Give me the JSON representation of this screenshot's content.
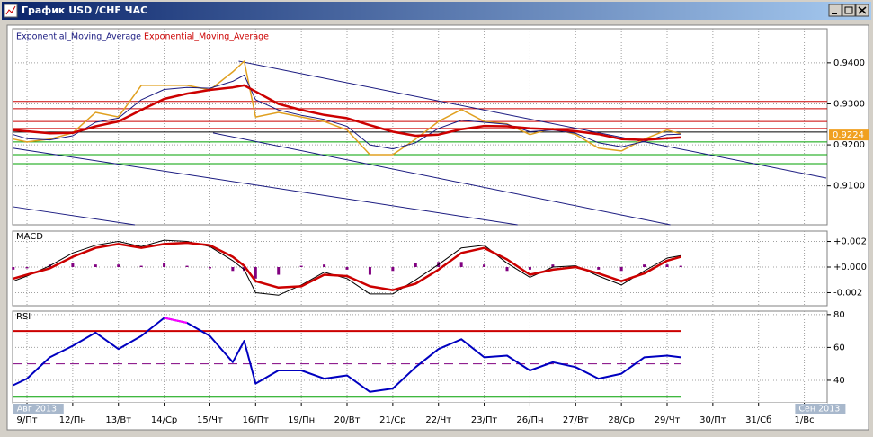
{
  "window": {
    "title": "График USD /CHF ЧАС"
  },
  "chart_data": [
    {
      "type": "line",
      "x": [
        -0.3,
        0,
        0.5,
        1,
        1.5,
        2,
        2.5,
        3,
        3.5,
        4,
        4.5,
        4.75,
        5,
        5.5,
        6,
        6.5,
        7,
        7.5,
        8,
        8.5,
        9,
        9.5,
        10,
        10.5,
        11,
        11.5,
        12,
        12.5,
        13,
        13.5,
        14,
        14.3
      ],
      "price": {
        "color": "#e0a020",
        "values": [
          0.9214,
          0.9207,
          0.9214,
          0.9229,
          0.9279,
          0.9268,
          0.9345,
          0.9345,
          0.9345,
          0.9334,
          0.9378,
          0.9404,
          0.9268,
          0.9279,
          0.9268,
          0.9257,
          0.9236,
          0.9176,
          0.9176,
          0.9214,
          0.9257,
          0.9286,
          0.9257,
          0.9251,
          0.9225,
          0.924,
          0.9225,
          0.9192,
          0.9185,
          0.9214,
          0.9236,
          0.9227
        ]
      },
      "series": [
        {
          "name": "Exponential_Moving_Average",
          "color": "#1a1a80",
          "values": [
            0.9225,
            0.9215,
            0.9212,
            0.9222,
            0.9255,
            0.9265,
            0.931,
            0.9335,
            0.934,
            0.9338,
            0.9355,
            0.937,
            0.931,
            0.9285,
            0.9272,
            0.9262,
            0.9245,
            0.92,
            0.919,
            0.9205,
            0.924,
            0.926,
            0.9255,
            0.925,
            0.9232,
            0.9236,
            0.9228,
            0.9205,
            0.9195,
            0.9208,
            0.9225,
            0.9226
          ]
        },
        {
          "name": "Exponential_Moving_Average",
          "color": "#cc0000",
          "values": [
            0.9236,
            0.9233,
            0.9228,
            0.9229,
            0.9245,
            0.9257,
            0.9285,
            0.9312,
            0.9325,
            0.9334,
            0.934,
            0.9345,
            0.933,
            0.93,
            0.9285,
            0.9273,
            0.9265,
            0.9248,
            0.9232,
            0.9222,
            0.9225,
            0.9238,
            0.9246,
            0.9245,
            0.924,
            0.9238,
            0.9233,
            0.9226,
            0.9214,
            0.9212,
            0.9216,
            0.9218
          ]
        }
      ],
      "ylim": [
        0.9005,
        0.9483
      ],
      "yticks": [
        {
          "value": 0.94,
          "label": "0.9400"
        },
        {
          "value": 0.93,
          "label": "0.9300"
        },
        {
          "value": 0.92,
          "label": "0.9200"
        },
        {
          "value": 0.91,
          "label": "0.9100"
        }
      ],
      "levels": [
        {
          "value": 0.9306,
          "color": "#cc0000"
        },
        {
          "value": 0.9288,
          "color": "#cc0000"
        },
        {
          "value": 0.9257,
          "color": "#cc0000"
        },
        {
          "value": 0.924,
          "color": "#cc0000"
        },
        {
          "value": 0.9231,
          "color": "#000000"
        },
        {
          "value": 0.9207,
          "color": "#00a000"
        },
        {
          "value": 0.9176,
          "color": "#00a000"
        },
        {
          "value": 0.9154,
          "color": "#00a000"
        }
      ],
      "trend_lines": [
        {
          "color": "#1a1a80",
          "x": [
            4.63,
            17.48
          ],
          "values": [
            0.9404,
            0.9119
          ]
        },
        {
          "color": "#1a1a80",
          "x": [
            4.07,
            14.07
          ],
          "values": [
            0.9229,
            0.9005
          ]
        },
        {
          "color": "#1a1a80",
          "x": [
            -0.31,
            10.73
          ],
          "values": [
            0.9192,
            0.9005
          ]
        },
        {
          "color": "#1a1a80",
          "x": [
            -0.31,
            2.36
          ],
          "values": [
            0.9049,
            0.9005
          ]
        }
      ],
      "current_price": {
        "value": 0.9224,
        "color": "#f0a020"
      }
    },
    {
      "type": "line",
      "title": "MACD",
      "x": [
        -0.3,
        0,
        0.5,
        1,
        1.5,
        2,
        2.5,
        3,
        3.5,
        4,
        4.5,
        4.75,
        5,
        5.5,
        6,
        6.5,
        7,
        7.5,
        8,
        8.5,
        9,
        9.5,
        10,
        10.5,
        11,
        11.5,
        12,
        12.5,
        13,
        13.5,
        14,
        14.3
      ],
      "histogram": {
        "color": "#800080",
        "values": [
          -0.0002,
          -0.0001,
          0.0002,
          0.0003,
          0.0002,
          0.0002,
          0.0001,
          0.0003,
          0.0001,
          -0.0001,
          -0.0003,
          -0.0003,
          -0.0009,
          -0.0006,
          0.0001,
          0.0002,
          -0.0002,
          -0.0006,
          -0.0003,
          0.0003,
          0.0004,
          0.0004,
          0.0002,
          -0.0003,
          -0.0002,
          0.0002,
          0.0001,
          -0.0002,
          -0.0003,
          0.0002,
          0.0002,
          0.0001
        ]
      },
      "series": [
        {
          "color": "#000000",
          "values": [
            -0.0011,
            -0.0007,
            0.0001,
            0.0011,
            0.0017,
            0.002,
            0.0016,
            0.0021,
            0.002,
            0.0016,
            0.0005,
            -0.0002,
            -0.002,
            -0.0022,
            -0.0014,
            -0.0004,
            -0.0009,
            -0.0021,
            -0.0021,
            -0.001,
            0.0002,
            0.0015,
            0.0017,
            0.0003,
            -0.0008,
            0.0,
            0.0001,
            -0.0007,
            -0.0014,
            -0.0003,
            0.0007,
            0.0009
          ]
        },
        {
          "color": "#cc0000",
          "values": [
            -0.0009,
            -0.0006,
            -0.0001,
            0.0008,
            0.0015,
            0.0018,
            0.0015,
            0.0018,
            0.0019,
            0.0017,
            0.0008,
            0.0001,
            -0.0011,
            -0.0016,
            -0.0015,
            -0.0006,
            -0.0007,
            -0.0015,
            -0.0018,
            -0.0013,
            -0.0002,
            0.0011,
            0.0015,
            0.0006,
            -0.0006,
            -0.0002,
            0.0,
            -0.0005,
            -0.0011,
            -0.0005,
            0.0005,
            0.0008
          ]
        }
      ],
      "ylim": [
        -0.00302,
        0.00281
      ],
      "yticks": [
        {
          "value": 0.002,
          "label": "+0.002"
        },
        {
          "value": 0,
          "label": "+0.000"
        },
        {
          "value": -0.002,
          "label": "-0.002"
        }
      ]
    },
    {
      "type": "line",
      "title": "RSI",
      "x": [
        -0.3,
        0,
        0.5,
        1,
        1.5,
        2,
        2.5,
        3,
        3.5,
        4,
        4.5,
        4.75,
        5,
        5.5,
        6,
        6.5,
        7,
        7.5,
        8,
        8.5,
        9,
        9.5,
        10,
        10.5,
        11,
        11.5,
        12,
        12.5,
        13,
        13.5,
        14,
        14.3
      ],
      "series": [
        {
          "color": "#0000c0",
          "overbought_color": "#ff00ff",
          "values": [
            37,
            41,
            54,
            61,
            69,
            59,
            67,
            78,
            75,
            67,
            51,
            64,
            38,
            46,
            46,
            41,
            43,
            33,
            35,
            48,
            59,
            65,
            54,
            55,
            46,
            51,
            48,
            41,
            44,
            54,
            55,
            54
          ]
        }
      ],
      "levels": [
        {
          "value": 70,
          "color": "#cc0000"
        },
        {
          "value": 50,
          "color": "#800080",
          "dashed": true
        },
        {
          "value": 30,
          "color": "#00a000"
        }
      ],
      "ylim": [
        26.3,
        82.1
      ],
      "yticks": [
        80,
        60,
        40
      ],
      "xlim": [
        -0.315,
        17.5
      ],
      "xticks": [
        {
          "value": 0,
          "label": "9/Пт"
        },
        {
          "value": 1,
          "label": "12/Пн"
        },
        {
          "value": 2,
          "label": "13/Вт"
        },
        {
          "value": 3,
          "label": "14/Ср"
        },
        {
          "value": 4,
          "label": "15/Чт"
        },
        {
          "value": 5,
          "label": "16/Пт"
        },
        {
          "value": 6,
          "label": "19/Пн"
        },
        {
          "value": 7,
          "label": "20/Вт"
        },
        {
          "value": 8,
          "label": "21/Ср"
        },
        {
          "value": 9,
          "label": "22/Чт"
        },
        {
          "value": 10,
          "label": "23/Пт"
        },
        {
          "value": 11,
          "label": "26/Пн"
        },
        {
          "value": 12,
          "label": "27/Вт"
        },
        {
          "value": 13,
          "label": "28/Ср"
        },
        {
          "value": 14,
          "label": "29/Чт"
        },
        {
          "value": 15,
          "label": "30/Пт"
        },
        {
          "value": 16,
          "label": "31/Сб"
        },
        {
          "value": 17,
          "label": "1/Вс"
        }
      ],
      "period_labels": [
        {
          "value": -0.3,
          "label": "Авг 2013"
        },
        {
          "value": 16.8,
          "label": "Сен 2013"
        }
      ]
    }
  ]
}
